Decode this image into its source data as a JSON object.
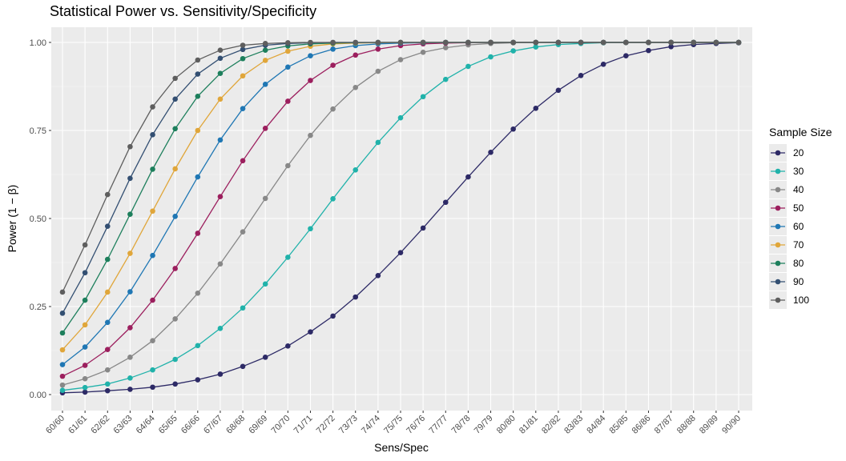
{
  "chart_data": {
    "type": "line",
    "title": "Statistical Power vs. Sensitivity/Specificity",
    "xlabel": "Sens/Spec",
    "ylabel": "Power (1 − β)",
    "ylim": [
      0,
      1
    ],
    "yticks": [
      "0.00",
      "0.25",
      "0.50",
      "0.75",
      "1.00"
    ],
    "grid": true,
    "legend_title": "Sample Size",
    "legend_position": "right",
    "categories": [
      "60/60",
      "61/61",
      "62/62",
      "63/63",
      "64/64",
      "65/65",
      "66/66",
      "67/67",
      "68/68",
      "69/69",
      "70/70",
      "71/71",
      "72/72",
      "73/73",
      "74/74",
      "75/75",
      "76/76",
      "77/77",
      "78/78",
      "79/79",
      "80/80",
      "81/81",
      "82/82",
      "83/83",
      "84/84",
      "85/85",
      "86/86",
      "87/87",
      "88/88",
      "89/89",
      "90/90"
    ],
    "series": [
      {
        "name": "20",
        "color": "#2d2a66",
        "values": [
          0.005,
          0.007,
          0.011,
          0.015,
          0.021,
          0.03,
          0.042,
          0.058,
          0.08,
          0.106,
          0.138,
          0.178,
          0.223,
          0.277,
          0.338,
          0.403,
          0.473,
          0.546,
          0.618,
          0.688,
          0.754,
          0.813,
          0.864,
          0.906,
          0.938,
          0.962,
          0.977,
          0.988,
          0.994,
          0.997,
          0.999
        ]
      },
      {
        "name": "30",
        "color": "#20b2aa",
        "values": [
          0.012,
          0.02,
          0.03,
          0.047,
          0.07,
          0.1,
          0.139,
          0.188,
          0.246,
          0.314,
          0.39,
          0.471,
          0.556,
          0.638,
          0.716,
          0.786,
          0.846,
          0.895,
          0.932,
          0.959,
          0.976,
          0.987,
          0.994,
          0.997,
          0.999,
          1.0,
          1.0,
          1.0,
          1.0,
          1.0,
          1.0
        ]
      },
      {
        "name": "40",
        "color": "#888888",
        "values": [
          0.027,
          0.045,
          0.07,
          0.106,
          0.153,
          0.215,
          0.288,
          0.371,
          0.462,
          0.557,
          0.65,
          0.736,
          0.811,
          0.872,
          0.918,
          0.951,
          0.972,
          0.985,
          0.993,
          0.997,
          0.999,
          1.0,
          1.0,
          1.0,
          1.0,
          1.0,
          1.0,
          1.0,
          1.0,
          1.0,
          1.0
        ]
      },
      {
        "name": "50",
        "color": "#9c1f5e",
        "values": [
          0.052,
          0.083,
          0.128,
          0.19,
          0.268,
          0.358,
          0.458,
          0.562,
          0.664,
          0.756,
          0.833,
          0.892,
          0.935,
          0.964,
          0.981,
          0.991,
          0.996,
          0.998,
          0.999,
          1.0,
          1.0,
          1.0,
          1.0,
          1.0,
          1.0,
          1.0,
          1.0,
          1.0,
          1.0,
          1.0,
          1.0
        ]
      },
      {
        "name": "60",
        "color": "#1f77b4",
        "values": [
          0.085,
          0.135,
          0.205,
          0.292,
          0.395,
          0.506,
          0.618,
          0.723,
          0.812,
          0.881,
          0.93,
          0.962,
          0.981,
          0.991,
          0.996,
          0.998,
          0.999,
          1.0,
          1.0,
          1.0,
          1.0,
          1.0,
          1.0,
          1.0,
          1.0,
          1.0,
          1.0,
          1.0,
          1.0,
          1.0,
          1.0
        ]
      },
      {
        "name": "70",
        "color": "#e0a63a",
        "values": [
          0.127,
          0.198,
          0.291,
          0.401,
          0.521,
          0.641,
          0.75,
          0.839,
          0.905,
          0.949,
          0.975,
          0.989,
          0.996,
          0.998,
          0.999,
          1.0,
          1.0,
          1.0,
          1.0,
          1.0,
          1.0,
          1.0,
          1.0,
          1.0,
          1.0,
          1.0,
          1.0,
          1.0,
          1.0,
          1.0,
          1.0
        ]
      },
      {
        "name": "80",
        "color": "#1d7f5c",
        "values": [
          0.175,
          0.268,
          0.384,
          0.512,
          0.64,
          0.755,
          0.847,
          0.912,
          0.954,
          0.978,
          0.99,
          0.996,
          0.998,
          0.999,
          1.0,
          1.0,
          1.0,
          1.0,
          1.0,
          1.0,
          1.0,
          1.0,
          1.0,
          1.0,
          1.0,
          1.0,
          1.0,
          1.0,
          1.0,
          1.0,
          1.0
        ]
      },
      {
        "name": "90",
        "color": "#334f72",
        "values": [
          0.231,
          0.346,
          0.478,
          0.614,
          0.738,
          0.839,
          0.91,
          0.955,
          0.98,
          0.992,
          0.997,
          0.999,
          1.0,
          1.0,
          1.0,
          1.0,
          1.0,
          1.0,
          1.0,
          1.0,
          1.0,
          1.0,
          1.0,
          1.0,
          1.0,
          1.0,
          1.0,
          1.0,
          1.0,
          1.0,
          1.0
        ]
      },
      {
        "name": "100",
        "color": "#5e5e5e",
        "values": [
          0.291,
          0.425,
          0.568,
          0.704,
          0.817,
          0.898,
          0.95,
          0.978,
          0.992,
          0.997,
          0.999,
          1.0,
          1.0,
          1.0,
          1.0,
          1.0,
          1.0,
          1.0,
          1.0,
          1.0,
          1.0,
          1.0,
          1.0,
          1.0,
          1.0,
          1.0,
          1.0,
          1.0,
          1.0,
          1.0,
          1.0
        ]
      }
    ]
  }
}
